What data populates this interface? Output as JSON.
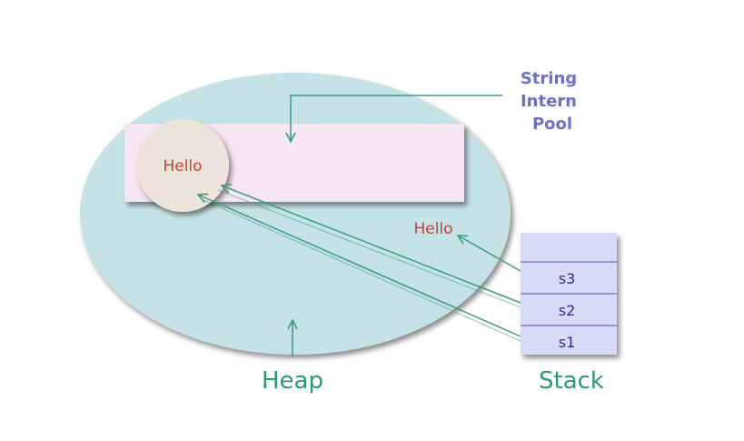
{
  "labels": {
    "pool_caption": [
      "String",
      "Intern",
      "Pool"
    ],
    "heap": "Heap",
    "stack": "Stack",
    "pool_literal": "Hello",
    "heap_object": "Hello"
  },
  "stack_slots": [
    "s3",
    "s2",
    "s1"
  ],
  "colors": {
    "heap_fill": "#c5e3e6",
    "pool_fill": "#f6e6f4",
    "circle_fill": "#efe4dc",
    "stack_fill": "#d6dcf7",
    "stack_line": "#6670c2",
    "arrow": "#3a9c7e",
    "hello_text": "#c0433f",
    "pool_caption": "#6d6fcc",
    "section_label": "#2a9a74",
    "stack_slot_text": "#2a2f8f"
  }
}
